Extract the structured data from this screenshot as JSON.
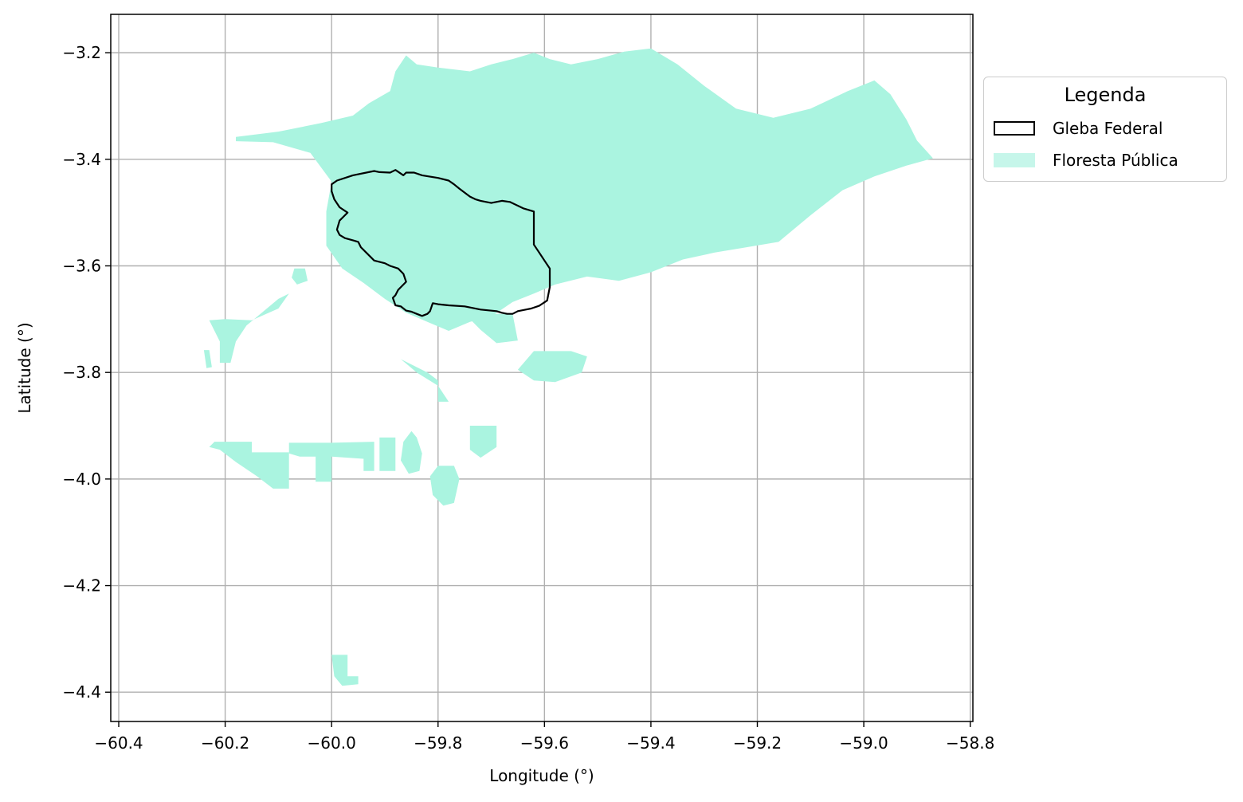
{
  "chart_data": {
    "type": "map",
    "xlabel": "Longitude (°)",
    "ylabel": "Latitude (°)",
    "xlim": [
      -60.415,
      -58.795
    ],
    "ylim": [
      -4.455,
      -3.128
    ],
    "x_ticks": [
      -60.4,
      -60.2,
      -60.0,
      -59.8,
      -59.6,
      -59.4,
      -59.2,
      -59.0,
      -58.8
    ],
    "y_ticks": [
      -3.2,
      -3.4,
      -3.6,
      -3.8,
      -4.0,
      -4.2,
      -4.4
    ],
    "x_tick_labels": [
      "−60.4",
      "−60.2",
      "−60.0",
      "−59.8",
      "−59.6",
      "−59.4",
      "−59.2",
      "−59.0",
      "−58.8"
    ],
    "y_tick_labels": [
      "−3.2",
      "−3.4",
      "−3.6",
      "−3.8",
      "−4.0",
      "−4.2",
      "−4.4"
    ],
    "grid": true,
    "legend": {
      "title": "Legenda",
      "placement": "outside-right",
      "items": [
        {
          "label": "Gleba Federal",
          "style": "outline",
          "color": "#000000"
        },
        {
          "label": "Floresta Pública",
          "style": "fill",
          "color": "#aaf4e0"
        }
      ]
    },
    "colors": {
      "forest": "#aaf4e0",
      "gleba_edge": "#000000",
      "grid": "#b0b0b0"
    },
    "layers": [
      {
        "name": "Floresta Pública",
        "polygons": [
          [
            [
              -60.18,
              -3.358
            ],
            [
              -60.1,
              -3.348
            ],
            [
              -60.02,
              -3.332
            ],
            [
              -59.96,
              -3.318
            ],
            [
              -59.93,
              -3.295
            ],
            [
              -59.89,
              -3.272
            ],
            [
              -59.88,
              -3.235
            ],
            [
              -59.86,
              -3.205
            ],
            [
              -59.84,
              -3.222
            ],
            [
              -59.8,
              -3.228
            ],
            [
              -59.74,
              -3.235
            ],
            [
              -59.7,
              -3.222
            ],
            [
              -59.66,
              -3.212
            ],
            [
              -59.62,
              -3.2
            ],
            [
              -59.59,
              -3.212
            ],
            [
              -59.55,
              -3.222
            ],
            [
              -59.5,
              -3.212
            ],
            [
              -59.45,
              -3.198
            ],
            [
              -59.4,
              -3.192
            ],
            [
              -59.35,
              -3.222
            ],
            [
              -59.3,
              -3.262
            ],
            [
              -59.24,
              -3.305
            ],
            [
              -59.17,
              -3.322
            ],
            [
              -59.1,
              -3.305
            ],
            [
              -59.03,
              -3.272
            ],
            [
              -58.98,
              -3.252
            ],
            [
              -58.95,
              -3.278
            ],
            [
              -58.92,
              -3.325
            ],
            [
              -58.9,
              -3.365
            ],
            [
              -58.87,
              -3.398
            ],
            [
              -58.92,
              -3.412
            ],
            [
              -58.98,
              -3.432
            ],
            [
              -59.04,
              -3.458
            ],
            [
              -59.1,
              -3.505
            ],
            [
              -59.16,
              -3.555
            ],
            [
              -59.22,
              -3.565
            ],
            [
              -59.28,
              -3.575
            ],
            [
              -59.34,
              -3.588
            ],
            [
              -59.4,
              -3.612
            ],
            [
              -59.46,
              -3.628
            ],
            [
              -59.52,
              -3.62
            ],
            [
              -59.58,
              -3.635
            ],
            [
              -59.62,
              -3.652
            ],
            [
              -59.66,
              -3.668
            ],
            [
              -59.7,
              -3.695
            ],
            [
              -59.74,
              -3.705
            ],
            [
              -59.78,
              -3.722
            ],
            [
              -59.82,
              -3.705
            ],
            [
              -59.86,
              -3.688
            ],
            [
              -59.9,
              -3.662
            ],
            [
              -59.94,
              -3.632
            ],
            [
              -59.98,
              -3.605
            ],
            [
              -60.01,
              -3.562
            ],
            [
              -60.01,
              -3.498
            ],
            [
              -60.0,
              -3.442
            ],
            [
              -60.04,
              -3.388
            ],
            [
              -60.11,
              -3.368
            ],
            [
              -60.18,
              -3.366
            ]
          ],
          [
            [
              -60.2,
              -3.7
            ],
            [
              -60.15,
              -3.702
            ],
            [
              -60.1,
              -3.68
            ],
            [
              -60.08,
              -3.652
            ],
            [
              -60.1,
              -3.662
            ],
            [
              -60.16,
              -3.712
            ],
            [
              -60.18,
              -3.742
            ],
            [
              -60.19,
              -3.782
            ],
            [
              -60.21,
              -3.782
            ],
            [
              -60.21,
              -3.742
            ],
            [
              -60.23,
              -3.702
            ]
          ],
          [
            [
              -60.07,
              -3.605
            ],
            [
              -60.05,
              -3.605
            ],
            [
              -60.045,
              -3.628
            ],
            [
              -60.065,
              -3.635
            ],
            [
              -60.075,
              -3.622
            ]
          ],
          [
            [
              -60.24,
              -3.758
            ],
            [
              -60.23,
              -3.758
            ],
            [
              -60.225,
              -3.79
            ],
            [
              -60.235,
              -3.792
            ]
          ],
          [
            [
              -60.22,
              -3.93
            ],
            [
              -60.15,
              -3.93
            ],
            [
              -60.15,
              -3.95
            ],
            [
              -60.08,
              -3.95
            ],
            [
              -60.08,
              -3.985
            ],
            [
              -60.08,
              -4.018
            ],
            [
              -60.11,
              -4.018
            ],
            [
              -60.14,
              -3.995
            ],
            [
              -60.18,
              -3.968
            ],
            [
              -60.21,
              -3.945
            ],
            [
              -60.23,
              -3.94
            ]
          ],
          [
            [
              -60.08,
              -3.932
            ],
            [
              -60.0,
              -3.932
            ],
            [
              -59.92,
              -3.93
            ],
            [
              -59.92,
              -3.985
            ],
            [
              -59.94,
              -3.985
            ],
            [
              -59.94,
              -3.962
            ],
            [
              -60.0,
              -3.958
            ],
            [
              -60.0,
              -4.005
            ],
            [
              -60.03,
              -4.005
            ],
            [
              -60.03,
              -3.958
            ],
            [
              -60.06,
              -3.958
            ],
            [
              -60.08,
              -3.952
            ]
          ],
          [
            [
              -59.91,
              -3.922
            ],
            [
              -59.88,
              -3.922
            ],
            [
              -59.88,
              -3.985
            ],
            [
              -59.91,
              -3.985
            ]
          ],
          [
            [
              -59.85,
              -3.91
            ],
            [
              -59.84,
              -3.922
            ],
            [
              -59.83,
              -3.952
            ],
            [
              -59.835,
              -3.985
            ],
            [
              -59.855,
              -3.99
            ],
            [
              -59.87,
              -3.965
            ],
            [
              -59.865,
              -3.93
            ]
          ],
          [
            [
              -59.8,
              -3.975
            ],
            [
              -59.77,
              -3.975
            ],
            [
              -59.76,
              -4.0
            ],
            [
              -59.77,
              -4.045
            ],
            [
              -59.79,
              -4.05
            ],
            [
              -59.81,
              -4.03
            ],
            [
              -59.815,
              -3.995
            ]
          ],
          [
            [
              -59.74,
              -3.9
            ],
            [
              -59.69,
              -3.9
            ],
            [
              -59.69,
              -3.94
            ],
            [
              -59.72,
              -3.96
            ],
            [
              -59.74,
              -3.945
            ]
          ],
          [
            [
              -59.87,
              -3.775
            ],
            [
              -59.82,
              -3.8
            ],
            [
              -59.8,
              -3.815
            ],
            [
              -59.8,
              -3.855
            ],
            [
              -59.78,
              -3.855
            ],
            [
              -59.8,
              -3.825
            ],
            [
              -59.84,
              -3.8
            ]
          ],
          [
            [
              -59.81,
              -3.67
            ],
            [
              -59.76,
              -3.68
            ],
            [
              -59.7,
              -3.69
            ],
            [
              -59.66,
              -3.69
            ],
            [
              -59.65,
              -3.74
            ],
            [
              -59.69,
              -3.745
            ],
            [
              -59.72,
              -3.72
            ],
            [
              -59.74,
              -3.7
            ],
            [
              -59.77,
              -3.69
            ]
          ],
          [
            [
              -59.62,
              -3.76
            ],
            [
              -59.55,
              -3.76
            ],
            [
              -59.52,
              -3.77
            ],
            [
              -59.53,
              -3.8
            ],
            [
              -59.58,
              -3.818
            ],
            [
              -59.62,
              -3.815
            ],
            [
              -59.65,
              -3.795
            ]
          ],
          [
            [
              -60.0,
              -4.33
            ],
            [
              -59.97,
              -4.33
            ],
            [
              -59.97,
              -4.37
            ],
            [
              -59.95,
              -4.37
            ],
            [
              -59.95,
              -4.385
            ],
            [
              -59.98,
              -4.388
            ],
            [
              -59.995,
              -4.37
            ]
          ]
        ]
      },
      {
        "name": "Gleba Federal",
        "polygons": [
          [
            [
              -60.0,
              -3.447
            ],
            [
              -59.99,
              -3.44
            ],
            [
              -59.96,
              -3.43
            ],
            [
              -59.92,
              -3.422
            ],
            [
              -59.91,
              -3.424
            ],
            [
              -59.89,
              -3.425
            ],
            [
              -59.88,
              -3.42
            ],
            [
              -59.865,
              -3.43
            ],
            [
              -59.86,
              -3.425
            ],
            [
              -59.845,
              -3.425
            ],
            [
              -59.83,
              -3.43
            ],
            [
              -59.8,
              -3.435
            ],
            [
              -59.78,
              -3.44
            ],
            [
              -59.77,
              -3.447
            ],
            [
              -59.76,
              -3.455
            ],
            [
              -59.74,
              -3.47
            ],
            [
              -59.73,
              -3.475
            ],
            [
              -59.72,
              -3.478
            ],
            [
              -59.7,
              -3.482
            ],
            [
              -59.68,
              -3.478
            ],
            [
              -59.665,
              -3.48
            ],
            [
              -59.64,
              -3.492
            ],
            [
              -59.62,
              -3.498
            ],
            [
              -59.62,
              -3.56
            ],
            [
              -59.61,
              -3.575
            ],
            [
              -59.6,
              -3.59
            ],
            [
              -59.59,
              -3.605
            ],
            [
              -59.59,
              -3.64
            ],
            [
              -59.595,
              -3.665
            ],
            [
              -59.61,
              -3.675
            ],
            [
              -59.625,
              -3.68
            ],
            [
              -59.635,
              -3.682
            ],
            [
              -59.65,
              -3.685
            ],
            [
              -59.66,
              -3.69
            ],
            [
              -59.67,
              -3.69
            ],
            [
              -59.68,
              -3.688
            ],
            [
              -59.69,
              -3.685
            ],
            [
              -59.72,
              -3.682
            ],
            [
              -59.75,
              -3.676
            ],
            [
              -59.78,
              -3.674
            ],
            [
              -59.8,
              -3.672
            ],
            [
              -59.81,
              -3.67
            ],
            [
              -59.815,
              -3.685
            ],
            [
              -59.82,
              -3.69
            ],
            [
              -59.83,
              -3.694
            ],
            [
              -59.84,
              -3.69
            ],
            [
              -59.85,
              -3.686
            ],
            [
              -59.86,
              -3.684
            ],
            [
              -59.87,
              -3.676
            ],
            [
              -59.88,
              -3.674
            ],
            [
              -59.885,
              -3.66
            ],
            [
              -59.88,
              -3.655
            ],
            [
              -59.875,
              -3.645
            ],
            [
              -59.86,
              -3.63
            ],
            [
              -59.865,
              -3.615
            ],
            [
              -59.875,
              -3.605
            ],
            [
              -59.89,
              -3.6
            ],
            [
              -59.9,
              -3.595
            ],
            [
              -59.92,
              -3.59
            ],
            [
              -59.935,
              -3.575
            ],
            [
              -59.945,
              -3.565
            ],
            [
              -59.95,
              -3.555
            ],
            [
              -59.96,
              -3.552
            ],
            [
              -59.975,
              -3.548
            ],
            [
              -59.985,
              -3.542
            ],
            [
              -59.99,
              -3.532
            ],
            [
              -59.985,
              -3.515
            ],
            [
              -59.975,
              -3.505
            ],
            [
              -59.97,
              -3.5
            ],
            [
              -59.985,
              -3.49
            ],
            [
              -59.995,
              -3.475
            ],
            [
              -60.0,
              -3.46
            ]
          ]
        ]
      }
    ]
  }
}
